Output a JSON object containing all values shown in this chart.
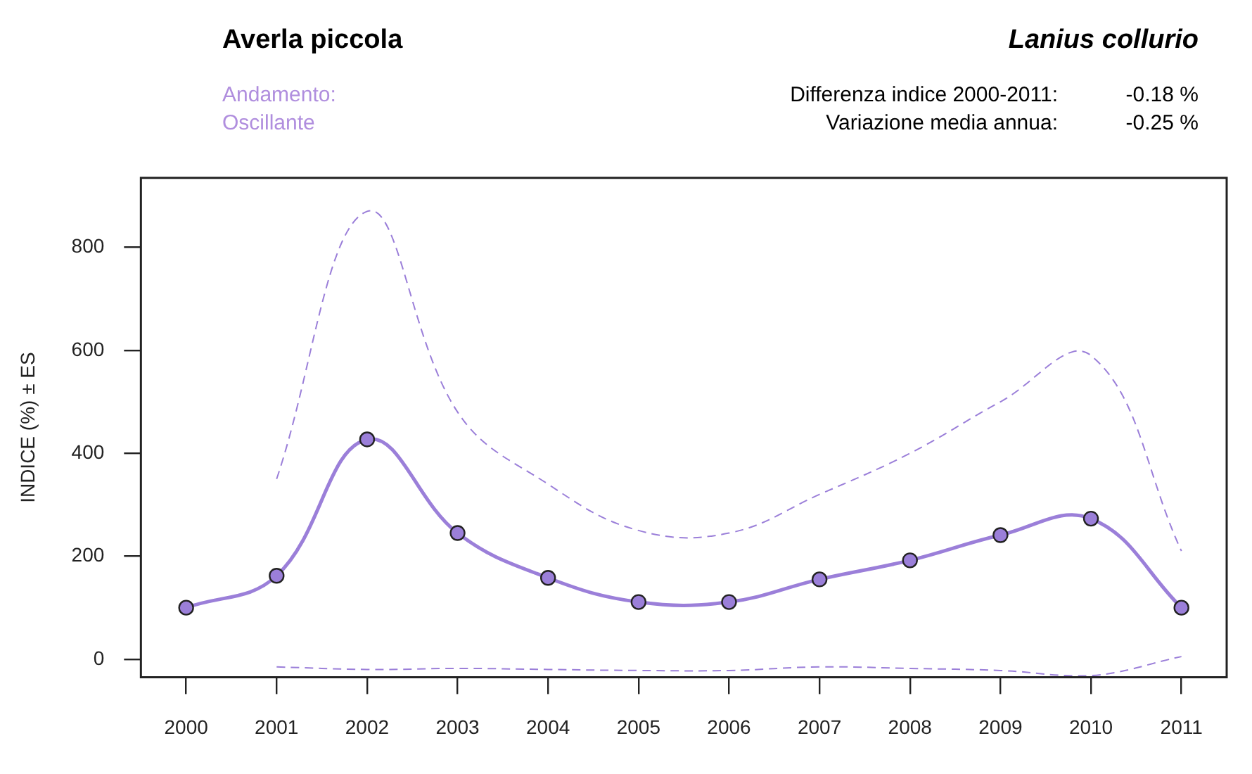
{
  "chart_data": {
    "type": "line",
    "title": "Averla piccola",
    "subtitle": "Lanius collurio",
    "ylabel": "INDICE (%) ± ES",
    "annotations": [
      "Andamento:",
      "Oscillante",
      "Differenza indice 2000-2011:",
      "-0.18 %",
      "Variazione media annua:",
      "-0.25 %"
    ],
    "categories": [
      "2000",
      "2001",
      "2002",
      "2003",
      "2004",
      "2005",
      "2006",
      "2007",
      "2008",
      "2009",
      "2010",
      "2011"
    ],
    "series": [
      {
        "color": "#9b7fd9",
        "values": [
          100,
          162,
          427,
          245,
          158,
          111,
          111,
          155,
          192,
          241,
          273,
          100
        ]
      },
      {
        "color": "#9b7fd9",
        "line_style": "dashed",
        "marker": "none",
        "values": [
          null,
          350,
          870,
          480,
          340,
          250,
          245,
          320,
          400,
          500,
          590,
          210
        ]
      },
      {
        "color": "#9b7fd9",
        "line_style": "dashed",
        "marker": "none",
        "values": [
          null,
          -15,
          -20,
          -18,
          -20,
          -22,
          -22,
          -15,
          -18,
          -22,
          -32,
          5
        ]
      }
    ],
    "ylim": [
      -35,
      935
    ],
    "yticks": [
      0,
      200,
      400,
      600,
      800
    ],
    "grid": false,
    "legend": false,
    "marker": "circle",
    "line_style": "solid"
  }
}
